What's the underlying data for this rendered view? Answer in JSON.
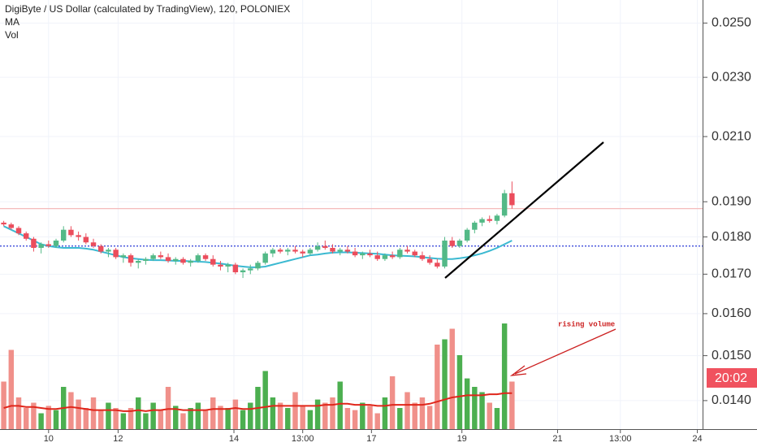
{
  "chart_data": {
    "type": "candlestick",
    "title": "DigiByte / US Dollar (calculated by TradingView), 120, POLONIEX",
    "indicators": [
      "MA",
      "Vol"
    ],
    "log_scale": true,
    "grid": true,
    "up_color": "#53b987",
    "down_color": "#eb4d5c",
    "vol_up_color": "#4caf50",
    "vol_down_color": "#f0908a",
    "ylim": [
      0.0134,
      0.0259
    ],
    "yticks": [
      {
        "value": 0.025,
        "label": "0.0250"
      },
      {
        "value": 0.023,
        "label": "0.0230"
      },
      {
        "value": 0.021,
        "label": "0.0210"
      },
      {
        "value": 0.019,
        "label": "0.0190"
      },
      {
        "value": 0.018,
        "label": "0.0180"
      },
      {
        "value": 0.017,
        "label": "0.0170"
      },
      {
        "value": 0.016,
        "label": "0.0160"
      },
      {
        "value": 0.015,
        "label": "0.0150"
      },
      {
        "value": 0.014,
        "label": "0.0140"
      }
    ],
    "xlim": [
      0,
      94
    ],
    "xticks": [
      {
        "value": 6.5,
        "label": "10"
      },
      {
        "value": 15.8,
        "label": "12"
      },
      {
        "value": 31.3,
        "label": "14"
      },
      {
        "value": 40.5,
        "label": "13:00"
      },
      {
        "value": 49.7,
        "label": "17"
      },
      {
        "value": 61.8,
        "label": "19"
      },
      {
        "value": 74.6,
        "label": "21"
      },
      {
        "value": 83,
        "label": "13:00"
      },
      {
        "value": 93.3,
        "label": "24"
      }
    ],
    "ohlc": [
      [
        0.0184,
        0.01845,
        0.0183,
        0.01835
      ],
      [
        0.01835,
        0.0184,
        0.0182,
        0.01825
      ],
      [
        0.01825,
        0.0183,
        0.01805,
        0.0181
      ],
      [
        0.0181,
        0.01815,
        0.0179,
        0.01795
      ],
      [
        0.01795,
        0.018,
        0.0176,
        0.0177
      ],
      [
        0.0177,
        0.01785,
        0.01755,
        0.0178
      ],
      [
        0.0178,
        0.0179,
        0.0177,
        0.01775
      ],
      [
        0.01775,
        0.01795,
        0.0177,
        0.0179
      ],
      [
        0.0179,
        0.0183,
        0.01785,
        0.0182
      ],
      [
        0.0182,
        0.0183,
        0.018,
        0.01805
      ],
      [
        0.01805,
        0.01815,
        0.0179,
        0.018
      ],
      [
        0.018,
        0.0181,
        0.0178,
        0.01785
      ],
      [
        0.01785,
        0.01795,
        0.0177,
        0.01775
      ],
      [
        0.01775,
        0.0178,
        0.01755,
        0.0176
      ],
      [
        0.0176,
        0.0177,
        0.01745,
        0.01765
      ],
      [
        0.01765,
        0.0177,
        0.0174,
        0.01745
      ],
      [
        0.01745,
        0.01755,
        0.0173,
        0.0175
      ],
      [
        0.0175,
        0.01755,
        0.0172,
        0.0173
      ],
      [
        0.0173,
        0.0174,
        0.01715,
        0.01735
      ],
      [
        0.01735,
        0.01745,
        0.01725,
        0.0174
      ],
      [
        0.0174,
        0.01755,
        0.01735,
        0.0175
      ],
      [
        0.0175,
        0.0176,
        0.0174,
        0.01745
      ],
      [
        0.01745,
        0.01755,
        0.0173,
        0.01735
      ],
      [
        0.01735,
        0.01745,
        0.01725,
        0.0174
      ],
      [
        0.0174,
        0.01745,
        0.01725,
        0.0173
      ],
      [
        0.0173,
        0.0174,
        0.0172,
        0.01735
      ],
      [
        0.01735,
        0.01755,
        0.0173,
        0.0175
      ],
      [
        0.0175,
        0.01755,
        0.01735,
        0.0174
      ],
      [
        0.0174,
        0.0175,
        0.0172,
        0.01725
      ],
      [
        0.01725,
        0.01735,
        0.0171,
        0.0172
      ],
      [
        0.0172,
        0.0173,
        0.01705,
        0.01725
      ],
      [
        0.01725,
        0.0173,
        0.017,
        0.01705
      ],
      [
        0.01705,
        0.01715,
        0.0169,
        0.0171
      ],
      [
        0.0171,
        0.01725,
        0.017,
        0.01715
      ],
      [
        0.01715,
        0.01735,
        0.0171,
        0.0173
      ],
      [
        0.0173,
        0.0176,
        0.01725,
        0.01755
      ],
      [
        0.01755,
        0.0177,
        0.01745,
        0.01765
      ],
      [
        0.01765,
        0.0177,
        0.01755,
        0.0176
      ],
      [
        0.0176,
        0.0177,
        0.0175,
        0.01765
      ],
      [
        0.01765,
        0.01775,
        0.01755,
        0.0176
      ],
      [
        0.0176,
        0.01765,
        0.01745,
        0.01755
      ],
      [
        0.01755,
        0.0177,
        0.0175,
        0.01765
      ],
      [
        0.01765,
        0.01785,
        0.0176,
        0.01775
      ],
      [
        0.01775,
        0.0179,
        0.01765,
        0.0177
      ],
      [
        0.0177,
        0.0178,
        0.01755,
        0.0176
      ],
      [
        0.0176,
        0.0177,
        0.0175,
        0.01765
      ],
      [
        0.01765,
        0.01775,
        0.01755,
        0.0176
      ],
      [
        0.0176,
        0.0177,
        0.01745,
        0.0175
      ],
      [
        0.0175,
        0.0176,
        0.0174,
        0.01755
      ],
      [
        0.01755,
        0.01765,
        0.01745,
        0.0175
      ],
      [
        0.0175,
        0.0176,
        0.01735,
        0.0174
      ],
      [
        0.0174,
        0.01755,
        0.01735,
        0.0175
      ],
      [
        0.0175,
        0.0176,
        0.0174,
        0.01745
      ],
      [
        0.01745,
        0.0177,
        0.0174,
        0.01765
      ],
      [
        0.01765,
        0.01775,
        0.01755,
        0.0176
      ],
      [
        0.0176,
        0.01765,
        0.01745,
        0.0175
      ],
      [
        0.0175,
        0.0176,
        0.01735,
        0.0174
      ],
      [
        0.0174,
        0.0175,
        0.01725,
        0.0173
      ],
      [
        0.0173,
        0.0174,
        0.01715,
        0.0172
      ],
      [
        0.0172,
        0.018,
        0.01715,
        0.0179
      ],
      [
        0.0179,
        0.018,
        0.0177,
        0.01775
      ],
      [
        0.01775,
        0.01795,
        0.0177,
        0.0179
      ],
      [
        0.0179,
        0.01825,
        0.01785,
        0.0182
      ],
      [
        0.0182,
        0.01845,
        0.0181,
        0.0184
      ],
      [
        0.0184,
        0.01855,
        0.0183,
        0.0185
      ],
      [
        0.0185,
        0.0186,
        0.0184,
        0.01845
      ],
      [
        0.01845,
        0.01865,
        0.01835,
        0.0186
      ],
      [
        0.0186,
        0.01935,
        0.01855,
        0.01925
      ],
      [
        0.01925,
        0.0196,
        0.0188,
        0.0189
      ]
    ],
    "ma": {
      "name": "MA",
      "color": "#3bb9d1",
      "values": [
        0.0183,
        0.0182,
        0.0181,
        0.018,
        0.0179,
        0.0178,
        0.01775,
        0.01772,
        0.0177,
        0.0177,
        0.0177,
        0.01768,
        0.01765,
        0.0176,
        0.01755,
        0.0175,
        0.01745,
        0.01742,
        0.0174,
        0.01738,
        0.01737,
        0.01737,
        0.01736,
        0.01735,
        0.01735,
        0.01734,
        0.01733,
        0.01732,
        0.0173,
        0.01728,
        0.01725,
        0.01722,
        0.0172,
        0.01718,
        0.01718,
        0.0172,
        0.01725,
        0.0173,
        0.01735,
        0.0174,
        0.01745,
        0.0175,
        0.01752,
        0.01755,
        0.01757,
        0.01758,
        0.01758,
        0.01757,
        0.01756,
        0.01755,
        0.01754,
        0.01752,
        0.0175,
        0.01749,
        0.01748,
        0.01747,
        0.01745,
        0.01743,
        0.01741,
        0.0174,
        0.0174,
        0.01742,
        0.01745,
        0.0175,
        0.01755,
        0.01762,
        0.0177,
        0.0178,
        0.0179
      ]
    },
    "vlim": [
      0,
      100
    ],
    "volume": [
      45,
      75,
      30,
      20,
      25,
      15,
      22,
      18,
      40,
      35,
      28,
      20,
      30,
      18,
      25,
      20,
      15,
      20,
      30,
      15,
      25,
      18,
      40,
      22,
      15,
      20,
      25,
      18,
      30,
      22,
      20,
      28,
      18,
      25,
      40,
      55,
      30,
      25,
      20,
      35,
      22,
      18,
      28,
      25,
      30,
      45,
      20,
      18,
      25,
      22,
      15,
      30,
      50,
      20,
      35,
      25,
      30,
      22,
      80,
      85,
      95,
      70,
      48,
      40,
      35,
      25,
      20,
      100,
      45
    ],
    "vol_ma": {
      "color": "#e0261b",
      "values": [
        20,
        22,
        22,
        21,
        21,
        20,
        19,
        19,
        20,
        21,
        20,
        19,
        18,
        18,
        18,
        18,
        17,
        17,
        18,
        17,
        18,
        18,
        19,
        19,
        18,
        18,
        18,
        18,
        19,
        19,
        19,
        20,
        19,
        19,
        20,
        21,
        22,
        22,
        22,
        22,
        22,
        22,
        22,
        23,
        23,
        24,
        24,
        23,
        23,
        23,
        22,
        22,
        23,
        23,
        23,
        23,
        23,
        24,
        26,
        28,
        30,
        31,
        32,
        32,
        32,
        33,
        33,
        34,
        34
      ]
    },
    "hlines": [
      {
        "value": 0.01775,
        "color": "#2a3bd6",
        "dash": true
      },
      {
        "value": 0.0188,
        "color": "#f3b3b3",
        "dash": false
      }
    ],
    "annotation": "rising volume",
    "countdown": "20:02"
  }
}
